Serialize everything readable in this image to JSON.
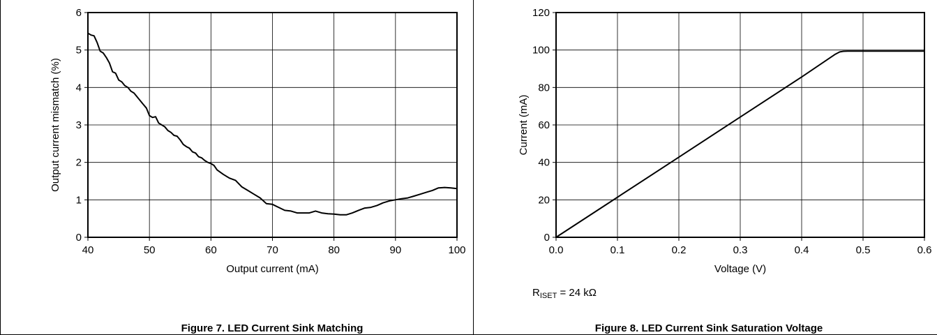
{
  "chart_data": [
    {
      "type": "line",
      "caption": "Figure 7. LED Current Sink Matching",
      "xlabel": "Output current (mA)",
      "ylabel": "Output current mismatch (%)",
      "xlim": [
        40,
        100
      ],
      "ylim": [
        0,
        6
      ],
      "xticks": [
        40,
        50,
        60,
        70,
        80,
        90,
        100
      ],
      "yticks": [
        0,
        1,
        2,
        3,
        4,
        5,
        6
      ],
      "xtick_labels": [
        "40",
        "50",
        "60",
        "70",
        "80",
        "90",
        "100"
      ],
      "ytick_labels": [
        "0",
        "1",
        "2",
        "3",
        "4",
        "5",
        "6"
      ],
      "grid": true,
      "series": [
        {
          "x": [
            40,
            40.5,
            41,
            41.5,
            42,
            42.5,
            43,
            43.5,
            44,
            44.5,
            45,
            45.5,
            46,
            46.5,
            47,
            47.5,
            48,
            48.5,
            49,
            49.5,
            50,
            50.5,
            51,
            51.5,
            52,
            52.5,
            53,
            53.5,
            54,
            54.5,
            55,
            55.5,
            56,
            56.5,
            57,
            57.5,
            58,
            58.5,
            59,
            59.5,
            60,
            60.5,
            61,
            62,
            63,
            64,
            65,
            66,
            67,
            68,
            69,
            70,
            71,
            72,
            73,
            74,
            75,
            76,
            77,
            78,
            79,
            80,
            81,
            82,
            83,
            84,
            85,
            86,
            87,
            88,
            89,
            90,
            91,
            92,
            93,
            94,
            95,
            96,
            97,
            98,
            99,
            100
          ],
          "y": [
            5.45,
            5.4,
            5.38,
            5.2,
            4.97,
            4.92,
            4.8,
            4.65,
            4.42,
            4.38,
            4.2,
            4.15,
            4.05,
            4.0,
            3.9,
            3.85,
            3.75,
            3.65,
            3.55,
            3.45,
            3.25,
            3.2,
            3.22,
            3.05,
            3.0,
            2.95,
            2.85,
            2.8,
            2.72,
            2.7,
            2.6,
            2.48,
            2.42,
            2.38,
            2.28,
            2.25,
            2.15,
            2.12,
            2.05,
            2.0,
            1.97,
            1.92,
            1.8,
            1.68,
            1.58,
            1.52,
            1.35,
            1.25,
            1.15,
            1.05,
            0.9,
            0.88,
            0.8,
            0.72,
            0.7,
            0.65,
            0.65,
            0.65,
            0.7,
            0.65,
            0.63,
            0.62,
            0.6,
            0.6,
            0.65,
            0.72,
            0.78,
            0.8,
            0.85,
            0.92,
            0.97,
            1.0,
            1.03,
            1.05,
            1.1,
            1.15,
            1.2,
            1.25,
            1.32,
            1.33,
            1.32,
            1.3
          ]
        }
      ]
    },
    {
      "type": "line",
      "caption": "Figure 8. LED Current Sink Saturation Voltage",
      "xlabel": "Voltage (V)",
      "ylabel": "Current (mA)",
      "xlim": [
        0,
        0.6
      ],
      "ylim": [
        0,
        120
      ],
      "xticks": [
        0,
        0.1,
        0.2,
        0.3,
        0.4,
        0.5,
        0.6
      ],
      "yticks": [
        0,
        20,
        40,
        60,
        80,
        100,
        120
      ],
      "xtick_labels": [
        "0.0",
        "0.1",
        "0.2",
        "0.3",
        "0.4",
        "0.5",
        "0.6"
      ],
      "ytick_labels": [
        "0",
        "20",
        "40",
        "60",
        "80",
        "100",
        "120"
      ],
      "grid": true,
      "note_main": "R",
      "note_sub": "ISET",
      "note_tail": " = 24 kΩ",
      "series": [
        {
          "x": [
            0,
            0.1,
            0.2,
            0.3,
            0.4,
            0.455,
            0.462,
            0.468,
            0.475,
            0.5,
            0.55,
            0.6
          ],
          "y": [
            0,
            21.4,
            42.8,
            64.2,
            85.6,
            97.8,
            99.0,
            99.3,
            99.4,
            99.4,
            99.4,
            99.4
          ]
        }
      ]
    }
  ]
}
